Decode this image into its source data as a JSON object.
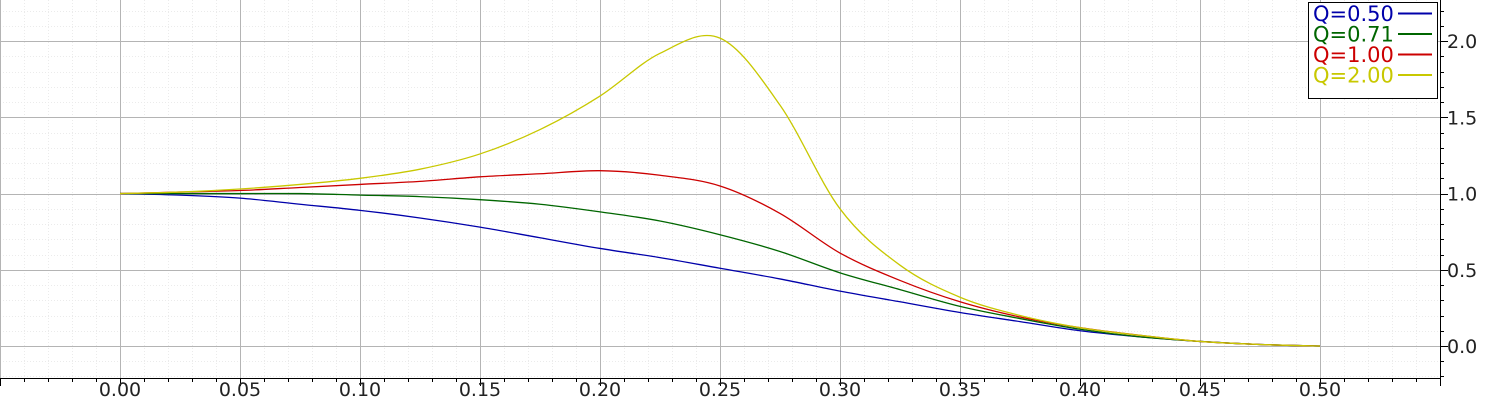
{
  "chart_data": {
    "type": "line",
    "title": "",
    "xlabel": "",
    "ylabel": "",
    "xlim": [
      -0.05,
      0.55
    ],
    "ylim": [
      -0.21,
      2.27
    ],
    "x_ticks": [
      "0.00",
      "0.05",
      "0.10",
      "0.15",
      "0.20",
      "0.25",
      "0.30",
      "0.35",
      "0.40",
      "0.45",
      "0.50"
    ],
    "y_ticks": [
      "0.0",
      "0.5",
      "1.0",
      "1.5",
      "2.0"
    ],
    "y_axis_side": "right",
    "grid": true,
    "legend_position": "top-right",
    "x": [
      0.0,
      0.025,
      0.05,
      0.075,
      0.1,
      0.125,
      0.15,
      0.175,
      0.2,
      0.225,
      0.25,
      0.275,
      0.3,
      0.325,
      0.35,
      0.375,
      0.4,
      0.425,
      0.45,
      0.475,
      0.5
    ],
    "series": [
      {
        "name": "Q=0.50",
        "color": "#0000aa",
        "values": [
          1.0,
          0.99,
          0.97,
          0.93,
          0.89,
          0.84,
          0.78,
          0.71,
          0.64,
          0.58,
          0.51,
          0.44,
          0.36,
          0.29,
          0.22,
          0.16,
          0.1,
          0.06,
          0.03,
          0.01,
          0.0
        ]
      },
      {
        "name": "Q=0.71",
        "color": "#006600",
        "values": [
          1.0,
          1.0,
          1.0,
          1.0,
          0.99,
          0.98,
          0.96,
          0.93,
          0.88,
          0.82,
          0.73,
          0.62,
          0.48,
          0.37,
          0.26,
          0.18,
          0.11,
          0.06,
          0.03,
          0.01,
          0.0
        ]
      },
      {
        "name": "Q=1.00",
        "color": "#cc0000",
        "values": [
          1.0,
          1.01,
          1.02,
          1.04,
          1.06,
          1.08,
          1.11,
          1.13,
          1.15,
          1.12,
          1.05,
          0.87,
          0.61,
          0.43,
          0.29,
          0.19,
          0.12,
          0.07,
          0.03,
          0.01,
          0.0
        ]
      },
      {
        "name": "Q=2.00",
        "color": "#c8c800",
        "values": [
          1.0,
          1.01,
          1.03,
          1.06,
          1.1,
          1.16,
          1.26,
          1.42,
          1.64,
          1.92,
          2.02,
          1.58,
          0.9,
          0.53,
          0.32,
          0.2,
          0.12,
          0.07,
          0.03,
          0.01,
          0.0
        ]
      }
    ]
  }
}
